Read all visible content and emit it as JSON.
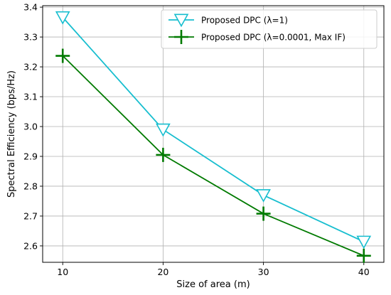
{
  "chart_data": {
    "type": "line",
    "xlabel": "Size of area (m)",
    "ylabel": "Spectral Efficiency (bps/Hz)",
    "x": [
      10,
      20,
      30,
      40
    ],
    "xlim": [
      8,
      42
    ],
    "ylim": [
      2.545,
      3.405
    ],
    "xticks": [
      10,
      20,
      30,
      40
    ],
    "xtick_labels": [
      "10",
      "20",
      "30",
      "40"
    ],
    "yticks": [
      2.6,
      2.7,
      2.8,
      2.9,
      3.0,
      3.1,
      3.2,
      3.3,
      3.4
    ],
    "ytick_labels": [
      "2.6",
      "2.7",
      "2.8",
      "2.9",
      "3.0",
      "3.1",
      "3.2",
      "3.3",
      "3.4"
    ],
    "grid": true,
    "legend_position": "top-right",
    "series": [
      {
        "name": "Proposed DPC (λ=1)",
        "color": "#17becf",
        "marker": "triangle-down",
        "values": [
          3.366,
          2.99,
          2.77,
          2.614
        ]
      },
      {
        "name": "Proposed DPC (λ=0.0001, Max IF)",
        "color": "#007a00",
        "marker": "plus",
        "values": [
          3.237,
          2.905,
          2.708,
          2.567
        ]
      }
    ]
  }
}
